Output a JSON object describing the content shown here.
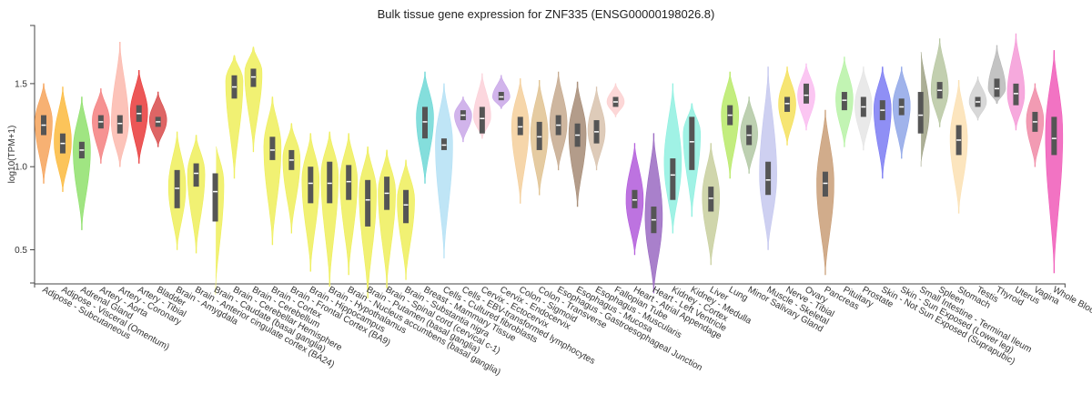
{
  "chart_data": {
    "type": "violin",
    "title": "Bulk tissue gene expression for ZNF335 (ENSG00000198026.8)",
    "ylabel": "log10(TPM+1)",
    "ylim": [
      0.3,
      1.85
    ],
    "yticks": [
      "0.5",
      "1.0",
      "1.5"
    ],
    "yticks_values": [
      0.5,
      1.0,
      1.5
    ],
    "grid": false,
    "categories": [
      {
        "name": "Adipose - Subcutaneous",
        "color": "#f6a35b",
        "min": 0.9,
        "q1": 1.19,
        "median": 1.25,
        "q3": 1.31,
        "max": 1.5,
        "peak": 1.27
      },
      {
        "name": "Adipose - Visceral (Omentum)",
        "color": "#fbba3d",
        "min": 0.85,
        "q1": 1.08,
        "median": 1.14,
        "q3": 1.2,
        "max": 1.48,
        "peak": 1.15
      },
      {
        "name": "Adrenal Gland",
        "color": "#8fe06c",
        "min": 0.62,
        "q1": 1.05,
        "median": 1.1,
        "q3": 1.15,
        "max": 1.42,
        "peak": 1.1
      },
      {
        "name": "Artery - Aorta",
        "color": "#f47f7f",
        "min": 1.02,
        "q1": 1.23,
        "median": 1.27,
        "q3": 1.31,
        "max": 1.47,
        "peak": 1.28
      },
      {
        "name": "Artery - Coronary",
        "color": "#fcb8ad",
        "min": 1.0,
        "q1": 1.2,
        "median": 1.26,
        "q3": 1.31,
        "max": 1.75,
        "peak": 1.26
      },
      {
        "name": "Artery - Tibial",
        "color": "#e93a3a",
        "min": 1.02,
        "q1": 1.27,
        "median": 1.32,
        "q3": 1.37,
        "max": 1.58,
        "peak": 1.33
      },
      {
        "name": "Bladder",
        "color": "#d84a4a",
        "min": 1.12,
        "q1": 1.24,
        "median": 1.27,
        "q3": 1.3,
        "max": 1.45,
        "peak": 1.28
      },
      {
        "name": "Brain - Amygdala",
        "color": "#eeee5b",
        "min": 0.5,
        "q1": 0.75,
        "median": 0.87,
        "q3": 0.98,
        "max": 1.21,
        "peak": 0.88
      },
      {
        "name": "Brain - Anterior cingulate cortex (BA24)",
        "color": "#eeee5b",
        "min": 0.48,
        "q1": 0.88,
        "median": 0.96,
        "q3": 1.02,
        "max": 1.19,
        "peak": 0.96
      },
      {
        "name": "Brain - Caudate (basal ganglia)",
        "color": "#eeee5b",
        "min": 0.23,
        "q1": 0.67,
        "median": 0.85,
        "q3": 0.96,
        "max": 1.16,
        "peak": 0.9
      },
      {
        "name": "Brain - Cerebellar Hemisphere",
        "color": "#eeee5b",
        "min": 0.93,
        "q1": 1.41,
        "median": 1.48,
        "q3": 1.55,
        "max": 1.67,
        "peak": 1.52
      },
      {
        "name": "Brain - Cerebellum",
        "color": "#eeee5b",
        "min": 1.09,
        "q1": 1.48,
        "median": 1.54,
        "q3": 1.59,
        "max": 1.72,
        "peak": 1.57
      },
      {
        "name": "Brain - Cortex",
        "color": "#eeee5b",
        "min": 0.53,
        "q1": 1.04,
        "median": 1.1,
        "q3": 1.18,
        "max": 1.42,
        "peak": 1.12
      },
      {
        "name": "Brain - Frontal Cortex (BA9)",
        "color": "#eeee5b",
        "min": 0.6,
        "q1": 0.98,
        "median": 1.04,
        "q3": 1.1,
        "max": 1.26,
        "peak": 1.05
      },
      {
        "name": "Brain - Hippocampus",
        "color": "#eeee5b",
        "min": 0.37,
        "q1": 0.78,
        "median": 0.9,
        "q3": 1.0,
        "max": 1.2,
        "peak": 0.92
      },
      {
        "name": "Brain - Hypothalamus",
        "color": "#eeee5b",
        "min": 0.28,
        "q1": 0.78,
        "median": 0.9,
        "q3": 1.03,
        "max": 1.21,
        "peak": 0.95
      },
      {
        "name": "Brain - Nucleus accumbens (basal ganglia)",
        "color": "#eeee5b",
        "min": 0.35,
        "q1": 0.8,
        "median": 0.91,
        "q3": 1.01,
        "max": 1.2,
        "peak": 0.92
      },
      {
        "name": "Brain - Putamen (basal ganglia)",
        "color": "#eeee5b",
        "min": 0.21,
        "q1": 0.64,
        "median": 0.8,
        "q3": 0.92,
        "max": 1.12,
        "peak": 0.85
      },
      {
        "name": "Brain - Spinal cord (cervical c-1)",
        "color": "#eeee5b",
        "min": 0.27,
        "q1": 0.74,
        "median": 0.84,
        "q3": 0.94,
        "max": 1.1,
        "peak": 0.85
      },
      {
        "name": "Brain - Substantia nigra",
        "color": "#eeee5b",
        "min": 0.32,
        "q1": 0.66,
        "median": 0.77,
        "q3": 0.86,
        "max": 1.04,
        "peak": 0.8
      },
      {
        "name": "Breast - Mammary Tissue",
        "color": "#6ed8d6",
        "min": 0.9,
        "q1": 1.17,
        "median": 1.27,
        "q3": 1.36,
        "max": 1.57,
        "peak": 1.3
      },
      {
        "name": "Cells - Cultured fibroblasts",
        "color": "#b4e1f5",
        "min": 0.45,
        "q1": 1.1,
        "median": 1.13,
        "q3": 1.17,
        "max": 1.5,
        "peak": 1.14
      },
      {
        "name": "Cells - EBV-transformed lymphocytes",
        "color": "#c9a7e8",
        "min": 1.15,
        "q1": 1.28,
        "median": 1.31,
        "q3": 1.34,
        "max": 1.42,
        "peak": 1.31
      },
      {
        "name": "Cervix - Ectocervix",
        "color": "#fbd0d8",
        "min": 1.17,
        "q1": 1.2,
        "median": 1.29,
        "q3": 1.36,
        "max": 1.56,
        "peak": 1.3
      },
      {
        "name": "Cervix - Endocervix",
        "color": "#c9a7e8",
        "min": 1.35,
        "q1": 1.4,
        "median": 1.42,
        "q3": 1.45,
        "max": 1.55,
        "peak": 1.42
      },
      {
        "name": "Colon - Sigmoid",
        "color": "#f4cf9b",
        "min": 0.78,
        "q1": 1.19,
        "median": 1.24,
        "q3": 1.3,
        "max": 1.53,
        "peak": 1.25
      },
      {
        "name": "Colon - Transverse",
        "color": "#e0c291",
        "min": 0.83,
        "q1": 1.1,
        "median": 1.18,
        "q3": 1.27,
        "max": 1.52,
        "peak": 1.2
      },
      {
        "name": "Esophagus - Gastroesophageal Junction",
        "color": "#c5a98e",
        "min": 0.98,
        "q1": 1.19,
        "median": 1.25,
        "q3": 1.31,
        "max": 1.57,
        "peak": 1.26
      },
      {
        "name": "Esophagus - Mucosa",
        "color": "#a68b75",
        "min": 0.76,
        "q1": 1.12,
        "median": 1.19,
        "q3": 1.26,
        "max": 1.51,
        "peak": 1.2
      },
      {
        "name": "Esophagus - Muscularis",
        "color": "#d8c2ad",
        "min": 0.98,
        "q1": 1.14,
        "median": 1.21,
        "q3": 1.28,
        "max": 1.48,
        "peak": 1.22
      },
      {
        "name": "Fallopian Tube",
        "color": "#fcd0d0",
        "min": 1.3,
        "q1": 1.36,
        "median": 1.39,
        "q3": 1.42,
        "max": 1.5,
        "peak": 1.39
      },
      {
        "name": "Heart - Atrial Appendage",
        "color": "#b15bdb",
        "min": 0.47,
        "q1": 0.75,
        "median": 0.8,
        "q3": 0.86,
        "max": 1.14,
        "peak": 0.8
      },
      {
        "name": "Heart - Left Ventricle",
        "color": "#9a6ac2",
        "min": 0.24,
        "q1": 0.6,
        "median": 0.68,
        "q3": 0.76,
        "max": 1.2,
        "peak": 0.7
      },
      {
        "name": "Kidney - Cortex",
        "color": "#8ff0e0",
        "min": 0.6,
        "q1": 0.8,
        "median": 0.95,
        "q3": 1.05,
        "max": 1.5,
        "peak": 1.02
      },
      {
        "name": "Kidney - Medulla",
        "color": "#8ff0e0",
        "min": 0.7,
        "q1": 0.98,
        "median": 1.15,
        "q3": 1.3,
        "max": 1.38,
        "peak": 1.2
      },
      {
        "name": "Liver",
        "color": "#c8cf9e",
        "min": 0.41,
        "q1": 0.73,
        "median": 0.81,
        "q3": 0.88,
        "max": 1.14,
        "peak": 0.82
      },
      {
        "name": "Lung",
        "color": "#b9ea68",
        "min": 0.93,
        "q1": 1.25,
        "median": 1.31,
        "q3": 1.37,
        "max": 1.57,
        "peak": 1.32
      },
      {
        "name": "Minor Salivary Gland",
        "color": "#b1c8a3",
        "min": 0.96,
        "q1": 1.13,
        "median": 1.19,
        "q3": 1.25,
        "max": 1.42,
        "peak": 1.2
      },
      {
        "name": "Muscle - Skeletal",
        "color": "#c5c8ef",
        "min": 0.5,
        "q1": 0.83,
        "median": 0.92,
        "q3": 1.03,
        "max": 1.6,
        "peak": 0.95
      },
      {
        "name": "Nerve - Tibial",
        "color": "#f4e05a",
        "min": 1.13,
        "q1": 1.33,
        "median": 1.38,
        "q3": 1.42,
        "max": 1.6,
        "peak": 1.38
      },
      {
        "name": "Ovary",
        "color": "#fabcf0",
        "min": 1.22,
        "q1": 1.38,
        "median": 1.43,
        "q3": 1.5,
        "max": 1.62,
        "peak": 1.43
      },
      {
        "name": "Pancreas",
        "color": "#c99e77",
        "min": 0.35,
        "q1": 0.82,
        "median": 0.9,
        "q3": 0.97,
        "max": 1.34,
        "peak": 0.9
      },
      {
        "name": "Pituitary",
        "color": "#b7f2a6",
        "min": 1.12,
        "q1": 1.34,
        "median": 1.4,
        "q3": 1.45,
        "max": 1.66,
        "peak": 1.41
      },
      {
        "name": "Prostate",
        "color": "#e5e5e5",
        "min": 1.1,
        "q1": 1.3,
        "median": 1.36,
        "q3": 1.42,
        "max": 1.6,
        "peak": 1.37
      },
      {
        "name": "Skin - Not Sun Exposed (Suprapubic)",
        "color": "#7b7bf3",
        "min": 0.93,
        "q1": 1.28,
        "median": 1.34,
        "q3": 1.4,
        "max": 1.6,
        "peak": 1.35
      },
      {
        "name": "Skin - Sun Exposed (Lower leg)",
        "color": "#8fa6e8",
        "min": 1.05,
        "q1": 1.31,
        "median": 1.36,
        "q3": 1.41,
        "max": 1.6,
        "peak": 1.37
      },
      {
        "name": "Small Intestine - Terminal Ileum",
        "color": "#9ea184",
        "min": 1.0,
        "q1": 1.2,
        "median": 1.31,
        "q3": 1.45,
        "max": 1.72,
        "peak": 1.33
      },
      {
        "name": "Spleen",
        "color": "#b7c7a1",
        "min": 1.24,
        "q1": 1.41,
        "median": 1.46,
        "q3": 1.51,
        "max": 1.77,
        "peak": 1.46
      },
      {
        "name": "Stomach",
        "color": "#fbe1b3",
        "min": 0.72,
        "q1": 1.07,
        "median": 1.16,
        "q3": 1.25,
        "max": 1.52,
        "peak": 1.17
      },
      {
        "name": "Testis",
        "color": "#d1d1d1",
        "min": 1.28,
        "q1": 1.36,
        "median": 1.39,
        "q3": 1.42,
        "max": 1.54,
        "peak": 1.39
      },
      {
        "name": "Thyroid",
        "color": "#b8b8b8",
        "min": 1.38,
        "q1": 1.42,
        "median": 1.47,
        "q3": 1.53,
        "max": 1.73,
        "peak": 1.47
      },
      {
        "name": "Uterus",
        "color": "#f59ad7",
        "min": 1.22,
        "q1": 1.37,
        "median": 1.44,
        "q3": 1.5,
        "max": 1.8,
        "peak": 1.44
      },
      {
        "name": "Vagina",
        "color": "#f08aa6",
        "min": 1.0,
        "q1": 1.21,
        "median": 1.27,
        "q3": 1.33,
        "max": 1.5,
        "peak": 1.28
      },
      {
        "name": "Whole Blood",
        "color": "#f05bb8",
        "min": 0.36,
        "q1": 1.07,
        "median": 1.17,
        "q3": 1.3,
        "max": 1.7,
        "peak": 1.2
      }
    ]
  }
}
